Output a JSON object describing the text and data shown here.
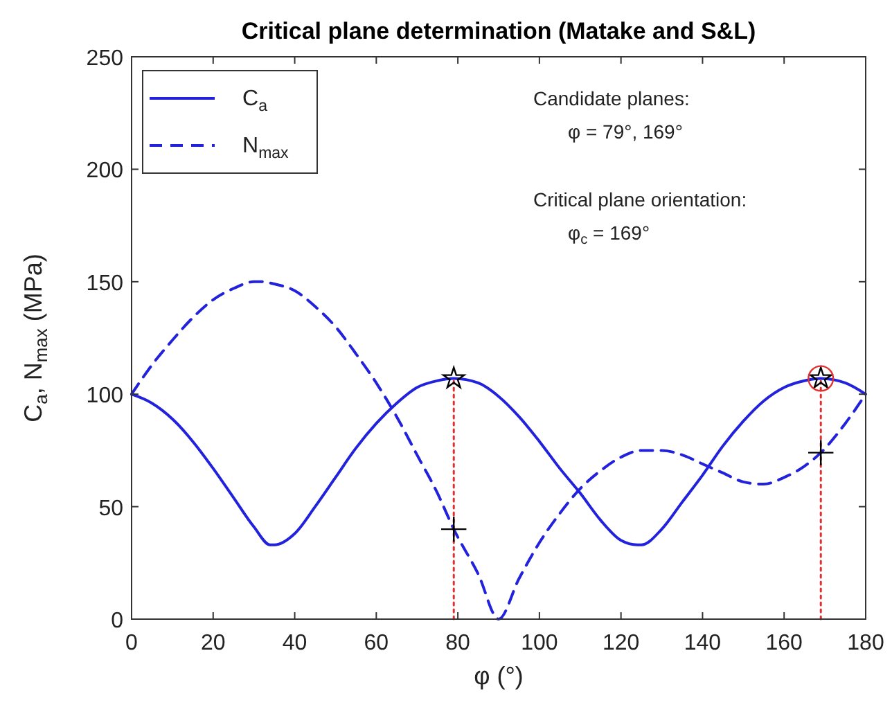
{
  "chart_data": {
    "type": "line",
    "title": "Critical plane determination (Matake and S&L)",
    "xlabel": "φ (°)",
    "ylabel": "C$_{a}$, N$_{max}$ (MPa)",
    "annotations": [
      "Candidate planes:",
      "φ = 79°, 169°",
      "Critical plane orientation:",
      "φ$_{c}$ = 169°"
    ],
    "xlim": [
      0,
      180
    ],
    "xticks": [
      0,
      20,
      40,
      60,
      80,
      100,
      120,
      140,
      160,
      180
    ],
    "ylim": [
      0,
      250
    ],
    "yticks": [
      0,
      50,
      100,
      150,
      200,
      250
    ],
    "grid": false,
    "legend": "top left",
    "marker": "none",
    "series": [
      {
        "name": "C$_{a}$",
        "color": "#2222dd",
        "line_style": "solid",
        "x": [
          0,
          5,
          10,
          15,
          20,
          25,
          30,
          34,
          35,
          40,
          45,
          50,
          55,
          60,
          65,
          70,
          75,
          79,
          85,
          90,
          95,
          100,
          105,
          110,
          115,
          120,
          124,
          125,
          130,
          135,
          140,
          145,
          150,
          155,
          160,
          165,
          169,
          175,
          180
        ],
        "values": [
          100,
          96,
          89,
          79,
          67,
          54,
          41,
          33,
          33,
          38,
          50,
          63,
          76,
          87,
          96,
          103,
          106,
          107,
          105,
          99,
          90,
          79,
          67,
          56,
          44,
          35,
          33,
          33,
          40,
          52,
          64,
          77,
          88,
          97,
          103,
          106,
          107,
          105,
          100
        ]
      },
      {
        "name": "N$_{max}$",
        "color": "#2222dd",
        "line_style": "dashed",
        "x": [
          0,
          5,
          10,
          15,
          20,
          25,
          30,
          32,
          35,
          40,
          45,
          50,
          55,
          60,
          65,
          70,
          75,
          79,
          85,
          90,
          95,
          100,
          105,
          110,
          115,
          120,
          125,
          130,
          135,
          140,
          145,
          150,
          155,
          160,
          165,
          169,
          175,
          180
        ],
        "values": [
          100,
          113,
          124,
          134,
          142,
          147,
          150,
          150,
          149,
          146,
          139,
          130,
          118,
          105,
          90,
          73,
          56,
          40,
          20,
          0,
          18,
          34,
          47,
          58,
          66,
          72,
          75,
          75,
          73,
          69,
          65,
          61,
          60,
          63,
          68,
          74,
          87,
          100
        ]
      },
      {
        "type": "line",
        "color": "#e03030",
        "line_style": "dotted",
        "x": [
          79,
          79
        ],
        "values": [
          0,
          107
        ]
      },
      {
        "type": "line",
        "color": "#e03030",
        "line_style": "dotted",
        "x": [
          169,
          169
        ],
        "values": [
          0,
          107
        ]
      },
      {
        "type": "scatter",
        "color": "#000000",
        "marker": "star",
        "x": [
          79,
          169
        ],
        "values": [
          107,
          107
        ]
      },
      {
        "type": "scatter",
        "color": "#000000",
        "marker": "cross",
        "x": [
          79,
          169
        ],
        "values": [
          40,
          74
        ]
      },
      {
        "type": "scatter",
        "color": "#e03030",
        "marker": "circle",
        "x": [
          169
        ],
        "values": [
          107
        ]
      }
    ]
  }
}
